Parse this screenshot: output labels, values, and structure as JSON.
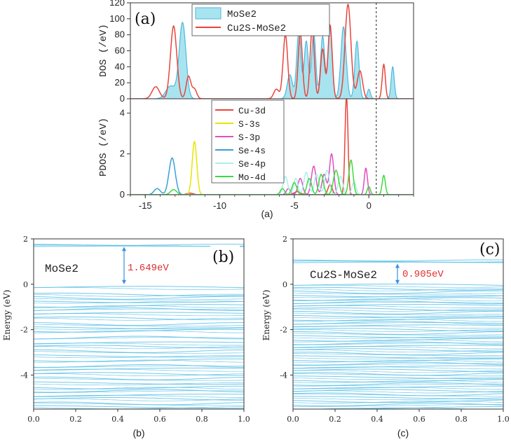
{
  "chart_data": [
    {
      "id": "dos",
      "type": "area",
      "panel_label": "(a)",
      "caption": "(a)",
      "ylabel": "DOS (/eV)",
      "xlim": [
        -16,
        3
      ],
      "ylim": [
        0,
        120
      ],
      "y_ticks": [
        "0",
        "20",
        "40",
        "60",
        "80",
        "100",
        "120"
      ],
      "fermi_level": 0,
      "legend_position": "top-center",
      "colors": {
        "MoSe2_fill": "#a8e4f0",
        "MoSe2_line": "#4fb8dc",
        "Cu2S_MoSe2": "#e8453c"
      },
      "series": [
        {
          "name": "MoSe2",
          "style": "filled",
          "peaks": [
            {
              "x": -12.5,
              "y": 95,
              "w": 0.32
            },
            {
              "x": -13.3,
              "y": 16,
              "w": 0.45
            },
            {
              "x": -4.7,
              "y": 85,
              "w": 0.2
            },
            {
              "x": -4.2,
              "y": 72,
              "w": 0.2
            },
            {
              "x": -3.7,
              "y": 82,
              "w": 0.2
            },
            {
              "x": -3.1,
              "y": 78,
              "w": 0.2
            },
            {
              "x": -2.6,
              "y": 88,
              "w": 0.2
            },
            {
              "x": -1.7,
              "y": 90,
              "w": 0.25
            },
            {
              "x": -0.8,
              "y": 72,
              "w": 0.2
            },
            {
              "x": -5.3,
              "y": 30,
              "w": 0.25
            },
            {
              "x": 1.6,
              "y": 40,
              "w": 0.15
            },
            {
              "x": 0.0,
              "y": 12,
              "w": 0.15
            }
          ]
        },
        {
          "name": "Cu2S-MoSe2",
          "style": "line",
          "peaks": [
            {
              "x": -13.1,
              "y": 91,
              "w": 0.3
            },
            {
              "x": -14.3,
              "y": 15,
              "w": 0.35
            },
            {
              "x": -12.1,
              "y": 28,
              "w": 0.22
            },
            {
              "x": -11.7,
              "y": 12,
              "w": 0.22
            },
            {
              "x": -5.6,
              "y": 80,
              "w": 0.22
            },
            {
              "x": -4.6,
              "y": 82,
              "w": 0.2
            },
            {
              "x": -3.8,
              "y": 88,
              "w": 0.2
            },
            {
              "x": -3.1,
              "y": 62,
              "w": 0.2
            },
            {
              "x": -2.6,
              "y": 92,
              "w": 0.2
            },
            {
              "x": -1.4,
              "y": 118,
              "w": 0.28
            },
            {
              "x": -0.6,
              "y": 35,
              "w": 0.25
            },
            {
              "x": 1.0,
              "y": 43,
              "w": 0.15
            },
            {
              "x": -6.2,
              "y": 12,
              "w": 0.25
            }
          ]
        }
      ]
    },
    {
      "id": "pdos",
      "type": "line",
      "ylabel": "PDOS (/eV)",
      "x_ticks": [
        "-15",
        "-10",
        "-5",
        "0"
      ],
      "y_ticks": [
        "0",
        "2",
        "4"
      ],
      "xlim": [
        -16,
        3
      ],
      "ylim": [
        0,
        4.7
      ],
      "fermi_level": 0,
      "legend_position": "top-center",
      "series": [
        {
          "name": "Cu-3d",
          "color": "#e8453c",
          "peaks": [
            {
              "x": -1.5,
              "y": 4.8,
              "w": 0.14
            },
            {
              "x": -2.6,
              "y": 0.5,
              "w": 0.2
            },
            {
              "x": -4.8,
              "y": 0.15,
              "w": 0.3
            },
            {
              "x": -12.0,
              "y": 0.08,
              "w": 0.3
            }
          ]
        },
        {
          "name": "S-3s",
          "color": "#e6e600",
          "peaks": [
            {
              "x": -11.7,
              "y": 2.6,
              "w": 0.22
            }
          ]
        },
        {
          "name": "S-3p",
          "color": "#e04fc0",
          "peaks": [
            {
              "x": -2.5,
              "y": 2.0,
              "w": 0.2
            },
            {
              "x": -3.7,
              "y": 1.4,
              "w": 0.22
            },
            {
              "x": -3.0,
              "y": 1.0,
              "w": 0.2
            },
            {
              "x": -4.6,
              "y": 0.8,
              "w": 0.22
            },
            {
              "x": -0.2,
              "y": 1.3,
              "w": 0.15
            },
            {
              "x": -5.4,
              "y": 0.3,
              "w": 0.2
            }
          ]
        },
        {
          "name": "Se-4s",
          "color": "#3a9fd8",
          "peaks": [
            {
              "x": -13.2,
              "y": 1.8,
              "w": 0.3
            },
            {
              "x": -14.2,
              "y": 0.3,
              "w": 0.3
            }
          ]
        },
        {
          "name": "Se-4p",
          "color": "#a8f0ec",
          "peaks": [
            {
              "x": -5.6,
              "y": 0.9,
              "w": 0.22
            },
            {
              "x": -4.9,
              "y": 0.8,
              "w": 0.2
            },
            {
              "x": -4.2,
              "y": 1.1,
              "w": 0.22
            },
            {
              "x": -3.5,
              "y": 1.0,
              "w": 0.22
            },
            {
              "x": -2.8,
              "y": 1.2,
              "w": 0.22
            },
            {
              "x": -1.9,
              "y": 0.9,
              "w": 0.22
            },
            {
              "x": -1.0,
              "y": 0.6,
              "w": 0.2
            }
          ]
        },
        {
          "name": "Mo-4d",
          "color": "#40d840",
          "peaks": [
            {
              "x": -1.2,
              "y": 1.7,
              "w": 0.2
            },
            {
              "x": -2.2,
              "y": 1.2,
              "w": 0.25
            },
            {
              "x": -3.2,
              "y": 1.0,
              "w": 0.22
            },
            {
              "x": -4.0,
              "y": 0.8,
              "w": 0.22
            },
            {
              "x": -5.0,
              "y": 0.6,
              "w": 0.22
            },
            {
              "x": -5.8,
              "y": 0.3,
              "w": 0.2
            },
            {
              "x": 1.0,
              "y": 0.95,
              "w": 0.15
            },
            {
              "x": 0.0,
              "y": 0.4,
              "w": 0.15
            },
            {
              "x": -13.1,
              "y": 0.25,
              "w": 0.3
            }
          ]
        }
      ]
    },
    {
      "id": "band-b",
      "type": "line",
      "panel_label": "(b)",
      "caption": "(b)",
      "title_text": "MoSe2",
      "gap_text": "1.649eV",
      "ylabel": "Energy (eV)",
      "xlim": [
        0,
        1
      ],
      "ylim": [
        -5.5,
        2
      ],
      "x_ticks": [
        "0.0",
        "0.2",
        "0.4",
        "0.6",
        "0.8",
        "1.0"
      ],
      "y_ticks": [
        "-4",
        "-2",
        "0",
        "2"
      ],
      "band_color": "#58bfe6",
      "gap_arrow_color": "#3a8fe0",
      "gap_text_color": "#e03030",
      "gap": {
        "from": 0.0,
        "to": 1.649
      },
      "conduction_bands": [
        1.66,
        1.7,
        1.74
      ],
      "valence_bands": [
        -0.15,
        -0.45,
        -0.6,
        -0.75,
        -0.95,
        -1.1,
        -1.3,
        -1.5,
        -1.75,
        -1.9,
        -2.05,
        -2.35,
        -2.6,
        -2.75,
        -2.95,
        -3.15,
        -3.35,
        -3.6,
        -3.75,
        -3.95,
        -4.15,
        -4.35,
        -4.55,
        -4.7,
        -4.9,
        -5.05,
        -5.25,
        -5.4
      ]
    },
    {
      "id": "band-c",
      "type": "line",
      "panel_label": "(c)",
      "caption": "(c)",
      "title_text": "Cu2S-MoSe2",
      "gap_text": "0.905eV",
      "ylabel": "Energy (eV)",
      "xlim": [
        0,
        1
      ],
      "ylim": [
        -5.5,
        2
      ],
      "x_ticks": [
        "0.0",
        "0.2",
        "0.4",
        "0.6",
        "0.8",
        "1.0"
      ],
      "y_ticks": [
        "-4",
        "-2",
        "0",
        "2"
      ],
      "band_color": "#58bfe6",
      "gap_arrow_color": "#3a8fe0",
      "gap_text_color": "#e03030",
      "gap": {
        "from": 0.0,
        "to": 0.905
      },
      "conduction_bands": [
        0.95,
        1.0,
        1.05
      ],
      "valence_bands": [
        -0.05,
        -0.2,
        -0.35,
        -0.5,
        -0.65,
        -0.8,
        -0.95,
        -1.1,
        -1.25,
        -1.4,
        -1.55,
        -1.7,
        -1.85,
        -2.0,
        -2.15,
        -2.3,
        -2.45,
        -2.6,
        -2.75,
        -2.9,
        -3.05,
        -3.2,
        -3.35,
        -3.5,
        -3.65,
        -3.8,
        -3.95,
        -4.1,
        -4.25,
        -4.4,
        -4.55,
        -4.7,
        -4.85,
        -5.0,
        -5.15,
        -5.3,
        -5.45
      ]
    }
  ]
}
